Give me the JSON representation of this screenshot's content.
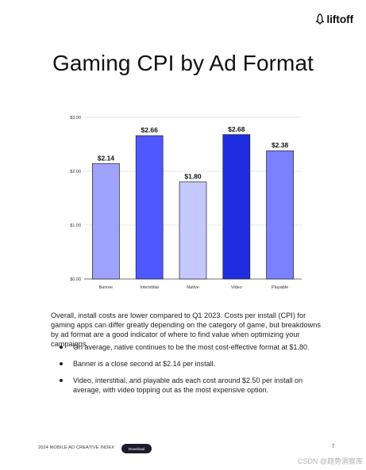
{
  "brand": {
    "name": "liftoff"
  },
  "title": "Gaming CPI by Ad Format",
  "chart_data": {
    "type": "bar",
    "categories": [
      "Banner",
      "Interstitial",
      "Native",
      "Video",
      "Playable"
    ],
    "values": [
      2.14,
      2.66,
      1.8,
      2.68,
      2.38
    ],
    "value_labels": [
      "$2.14",
      "$2.66",
      "$1.80",
      "$2.68",
      "$2.38"
    ],
    "bar_colors": [
      "#9fa2fb",
      "#4f57ff",
      "#c5c7ff",
      "#1f2de0",
      "#7a81ff"
    ],
    "y_ticks": [
      0,
      1,
      2,
      3
    ],
    "y_tick_labels": [
      "$0.00",
      "$1.00",
      "$2.00",
      "$3.00"
    ],
    "ylim": [
      0,
      3
    ],
    "grid": "dashed-horizontal"
  },
  "paragraph": "Overall, install costs are lower compared to Q1 2023. Costs per install (CPI) for gaming apps can differ greatly depending on the category of game, but breakdowns by ad format are a good indicator of where to find value when optimizing your campaigns.",
  "bullets": [
    "On average, native continues to be the most cost-effective format at $1.80.",
    "Banner is a close second at $2.14 per install.",
    "Video, interstitial, and playable ads each cost around $2.50 per install on average, with video topping out as the most expensive option."
  ],
  "footer": {
    "report_name": "2024 MOBILE AD CREATIVE INDEX",
    "download_label": "Download",
    "page_number": "7"
  },
  "watermark": "CSDN @趋势洞察库"
}
